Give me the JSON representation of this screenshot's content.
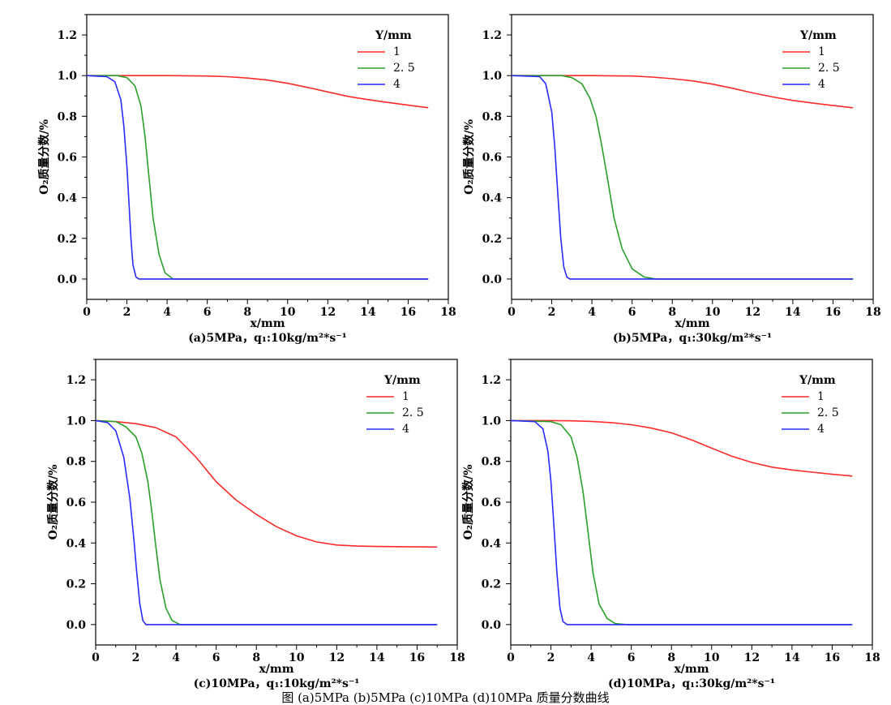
{
  "figure_caption": "图 (a)5MPa (b)5MPa (c)10MPa (d)10MPa 质量分数曲线",
  "chart_data": [
    {
      "type": "line",
      "caption": "(a)5MPa，q₁:10kg/m²*s⁻¹",
      "xlabel": "x/mm",
      "ylabel": "O₂质量分数/%",
      "xlim": [
        0,
        18
      ],
      "ylim": [
        -0.1,
        1.3
      ],
      "xticks": [
        "0",
        "2",
        "4",
        "6",
        "8",
        "10",
        "12",
        "14",
        "16",
        "18"
      ],
      "yticks": [
        "0.0",
        "0.2",
        "0.4",
        "0.6",
        "0.8",
        "1.0",
        "1.2"
      ],
      "legend_title": "Y/mm",
      "legend_position": "top-right",
      "series": [
        {
          "name": "1",
          "color": "#ff2a2a",
          "x": [
            0,
            2,
            4,
            6,
            7,
            8,
            9,
            10,
            11,
            12,
            13,
            14,
            15,
            16,
            17
          ],
          "y": [
            1.0,
            1.0,
            1.0,
            0.998,
            0.995,
            0.988,
            0.978,
            0.962,
            0.942,
            0.92,
            0.898,
            0.882,
            0.868,
            0.855,
            0.842
          ]
        },
        {
          "name": "2. 5",
          "color": "#2aa02a",
          "x": [
            0,
            1.5,
            2.0,
            2.4,
            2.7,
            2.9,
            3.1,
            3.3,
            3.6,
            3.9,
            4.3,
            17
          ],
          "y": [
            1.0,
            1.0,
            0.99,
            0.95,
            0.85,
            0.7,
            0.5,
            0.3,
            0.12,
            0.03,
            0.0,
            0.0
          ]
        },
        {
          "name": "4",
          "color": "#2a2aff",
          "x": [
            0,
            1.0,
            1.4,
            1.7,
            1.85,
            2.0,
            2.1,
            2.2,
            2.3,
            2.45,
            2.6,
            17
          ],
          "y": [
            1.0,
            0.995,
            0.97,
            0.88,
            0.75,
            0.55,
            0.38,
            0.2,
            0.07,
            0.01,
            0.0,
            0.0
          ]
        }
      ]
    },
    {
      "type": "line",
      "caption": "(b)5MPa，q₁:30kg/m²*s⁻¹",
      "xlabel": "x/mm",
      "ylabel": "O₂质量分数/%",
      "xlim": [
        0,
        18
      ],
      "ylim": [
        -0.1,
        1.3
      ],
      "xticks": [
        "0",
        "2",
        "4",
        "6",
        "8",
        "10",
        "12",
        "14",
        "16",
        "18"
      ],
      "yticks": [
        "0.0",
        "0.2",
        "0.4",
        "0.6",
        "0.8",
        "1.0",
        "1.2"
      ],
      "legend_title": "Y/mm",
      "legend_position": "top-right",
      "series": [
        {
          "name": "1",
          "color": "#ff2a2a",
          "x": [
            0,
            2,
            4,
            6,
            7,
            8,
            9,
            10,
            11,
            12,
            13,
            14,
            15,
            16,
            17
          ],
          "y": [
            1.0,
            1.0,
            1.0,
            0.998,
            0.993,
            0.985,
            0.974,
            0.958,
            0.938,
            0.915,
            0.895,
            0.878,
            0.865,
            0.853,
            0.842
          ]
        },
        {
          "name": "2. 5",
          "color": "#2aa02a",
          "x": [
            0,
            2.5,
            3.0,
            3.5,
            3.9,
            4.2,
            4.5,
            4.8,
            5.1,
            5.5,
            6.0,
            6.6,
            7.2,
            17
          ],
          "y": [
            1.0,
            1.0,
            0.99,
            0.96,
            0.89,
            0.8,
            0.65,
            0.48,
            0.3,
            0.15,
            0.05,
            0.01,
            0.0,
            0.0
          ]
        },
        {
          "name": "4",
          "color": "#2a2aff",
          "x": [
            0,
            1.4,
            1.7,
            2.0,
            2.15,
            2.3,
            2.45,
            2.6,
            2.75,
            2.9,
            17
          ],
          "y": [
            1.0,
            0.995,
            0.96,
            0.82,
            0.65,
            0.42,
            0.2,
            0.06,
            0.01,
            0.0,
            0.0
          ]
        }
      ]
    },
    {
      "type": "line",
      "caption": "(c)10MPa，q₁:10kg/m²*s⁻¹",
      "xlabel": "x/mm",
      "ylabel": "O₂质量分数/%",
      "xlim": [
        0,
        18
      ],
      "ylim": [
        -0.1,
        1.3
      ],
      "xticks": [
        "0",
        "2",
        "4",
        "6",
        "8",
        "10",
        "12",
        "14",
        "16",
        "18"
      ],
      "yticks": [
        "0.0",
        "0.2",
        "0.4",
        "0.6",
        "0.8",
        "1.0",
        "1.2"
      ],
      "legend_title": "Y/mm",
      "legend_position": "top-right",
      "series": [
        {
          "name": "1",
          "color": "#ff2a2a",
          "x": [
            0,
            1,
            2,
            3,
            4,
            5,
            6,
            7,
            8,
            9,
            10,
            11,
            12,
            13,
            14,
            15,
            16,
            17
          ],
          "y": [
            1.0,
            0.995,
            0.985,
            0.965,
            0.92,
            0.82,
            0.7,
            0.61,
            0.54,
            0.48,
            0.435,
            0.405,
            0.39,
            0.385,
            0.383,
            0.382,
            0.381,
            0.38
          ]
        },
        {
          "name": "2. 5",
          "color": "#2aa02a",
          "x": [
            0,
            1.0,
            1.5,
            2.0,
            2.3,
            2.6,
            2.8,
            3.0,
            3.2,
            3.5,
            3.8,
            4.2,
            17
          ],
          "y": [
            1.0,
            0.995,
            0.97,
            0.92,
            0.84,
            0.7,
            0.55,
            0.38,
            0.22,
            0.08,
            0.02,
            0.0,
            0.0
          ]
        },
        {
          "name": "4",
          "color": "#2a2aff",
          "x": [
            0,
            0.6,
            1.0,
            1.4,
            1.7,
            1.9,
            2.05,
            2.2,
            2.35,
            2.5,
            17
          ],
          "y": [
            1.0,
            0.99,
            0.95,
            0.82,
            0.62,
            0.42,
            0.25,
            0.1,
            0.02,
            0.0,
            0.0
          ]
        }
      ]
    },
    {
      "type": "line",
      "caption": "(d)10MPa，q₁:30kg/m²*s⁻¹",
      "xlabel": "x/mm",
      "ylabel": "O₂质量分数/%",
      "xlim": [
        0,
        18
      ],
      "ylim": [
        -0.1,
        1.3
      ],
      "xticks": [
        "0",
        "2",
        "4",
        "6",
        "8",
        "10",
        "12",
        "14",
        "16",
        "18"
      ],
      "yticks": [
        "0.0",
        "0.2",
        "0.4",
        "0.6",
        "0.8",
        "1.0",
        "1.2"
      ],
      "legend_title": "Y/mm",
      "legend_position": "top-right",
      "series": [
        {
          "name": "1",
          "color": "#ff2a2a",
          "x": [
            0,
            2,
            3,
            4,
            5,
            6,
            7,
            8,
            9,
            10,
            11,
            12,
            13,
            14,
            15,
            16,
            17
          ],
          "y": [
            1.0,
            1.0,
            0.999,
            0.996,
            0.99,
            0.98,
            0.963,
            0.94,
            0.905,
            0.865,
            0.825,
            0.795,
            0.772,
            0.758,
            0.747,
            0.737,
            0.728
          ]
        },
        {
          "name": "2. 5",
          "color": "#2aa02a",
          "x": [
            0,
            2.0,
            2.5,
            3.0,
            3.3,
            3.6,
            3.85,
            4.1,
            4.4,
            4.8,
            5.2,
            5.8,
            17
          ],
          "y": [
            1.0,
            0.995,
            0.98,
            0.92,
            0.82,
            0.65,
            0.45,
            0.25,
            0.1,
            0.03,
            0.005,
            0.0,
            0.0
          ]
        },
        {
          "name": "4",
          "color": "#2a2aff",
          "x": [
            0,
            1.2,
            1.6,
            1.85,
            2.0,
            2.15,
            2.3,
            2.45,
            2.6,
            2.8,
            17
          ],
          "y": [
            1.0,
            0.995,
            0.96,
            0.85,
            0.7,
            0.48,
            0.25,
            0.08,
            0.015,
            0.0,
            0.0
          ]
        }
      ]
    }
  ]
}
